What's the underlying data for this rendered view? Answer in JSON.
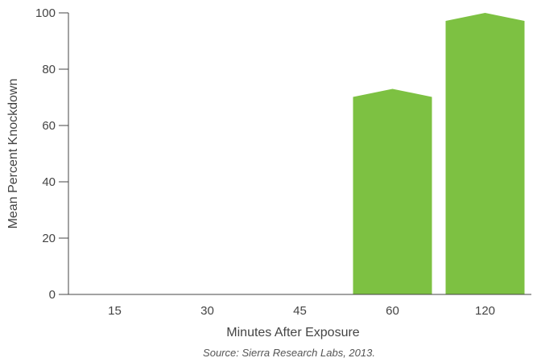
{
  "chart_data": {
    "type": "bar",
    "categories": [
      "15",
      "30",
      "45",
      "60",
      "120"
    ],
    "values": [
      0,
      0,
      0,
      73,
      100
    ],
    "title": "",
    "xlabel": "Minutes After Exposure",
    "ylabel": "Mean Percent Knockdown",
    "ylim": [
      0,
      100
    ],
    "yticks": [
      "0",
      "20",
      "40",
      "60",
      "80",
      "100"
    ],
    "grid": false,
    "bar_color": "#7dc142",
    "source": "Source: Sierra Research Labs, 2013."
  }
}
